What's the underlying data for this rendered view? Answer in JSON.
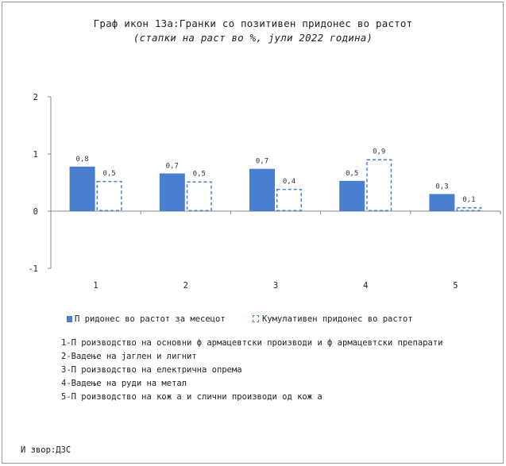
{
  "title": "Граф икон 13а:Гранки со позитивен придонес во растот",
  "subtitle": "(стапки на раст во %, јули 2022 година)",
  "chart_data": {
    "type": "bar",
    "categories": [
      "1",
      "2",
      "3",
      "4",
      "5"
    ],
    "series": [
      {
        "name": "П ридонес во растот за месецот",
        "style": "solid",
        "values": [
          0.78,
          0.66,
          0.74,
          0.53,
          0.3
        ],
        "labels": [
          "0,8",
          "0,7",
          "0,7",
          "0,5",
          "0,3"
        ]
      },
      {
        "name": "Кумулативен придонес во растот",
        "style": "dashed",
        "values": [
          0.53,
          0.52,
          0.39,
          0.91,
          0.07
        ],
        "labels": [
          "0,5",
          "0,5",
          "0,4",
          "0,9",
          "0,1"
        ]
      }
    ],
    "ylim": [
      -1,
      2
    ],
    "yticks": [
      -1,
      0,
      1,
      2
    ],
    "ytick_labels": [
      "-1",
      "0",
      "1",
      "2"
    ],
    "xlabel": "",
    "ylabel": "",
    "grid": false,
    "legend_position": "bottom",
    "colors": {
      "bar": "#4a7fd0",
      "axis": "#888888"
    }
  },
  "notes": [
    "1-П роизводство на основни ф армацевтски производи и ф армацевтски препарати",
    "2-Вадење на јаглен и лигнит",
    "3-П роизводство на електрична опрема",
    "4-Вадење на руди на метал",
    "5-П роизводство на кож а и слични производи од кож а"
  ],
  "source": "И звор:ДЗС"
}
